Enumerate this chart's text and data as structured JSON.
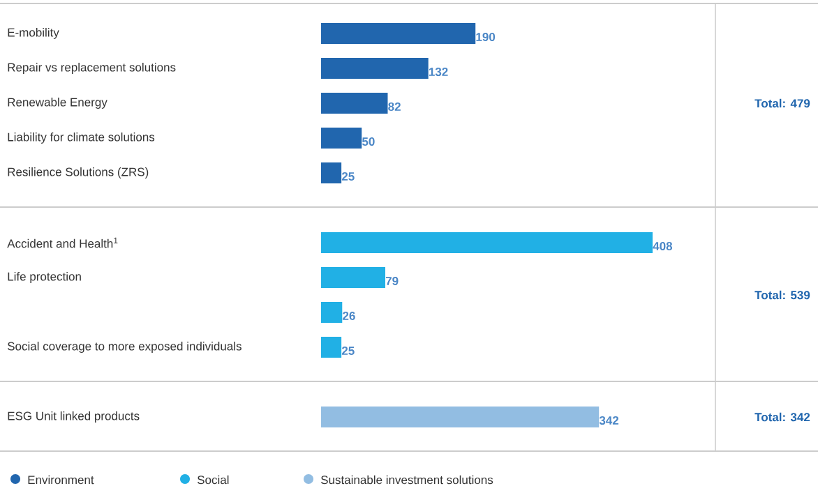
{
  "chart_data": {
    "type": "bar",
    "orientation": "horizontal",
    "categories": [
      "E-mobility",
      "Repair vs replacement solutions",
      "Renewable Energy",
      "Liability for climate solutions",
      "Resilience Solutions (ZRS)",
      "Accident and Health$^{1}$",
      "Life protection",
      null,
      "Social coverage to more exposed individuals",
      "ESG Unit linked products"
    ],
    "series": [
      {
        "name": "Environment",
        "color": "#2166ae",
        "values": [
          190,
          132,
          82,
          50,
          25,
          null,
          null,
          null,
          null,
          null
        ]
      },
      {
        "name": "Social",
        "color": "#21b0e5",
        "values": [
          null,
          null,
          null,
          null,
          null,
          408,
          79,
          26,
          25,
          null
        ]
      },
      {
        "name": "Sustainable investment solutions",
        "color": "#92bde2",
        "values": [
          null,
          null,
          null,
          null,
          null,
          null,
          null,
          null,
          null,
          342
        ]
      }
    ],
    "data_labels": true,
    "legend": "bottom",
    "annotations": [
      "Total: 479",
      "Total: 539",
      "Total: 342"
    ]
  }
}
